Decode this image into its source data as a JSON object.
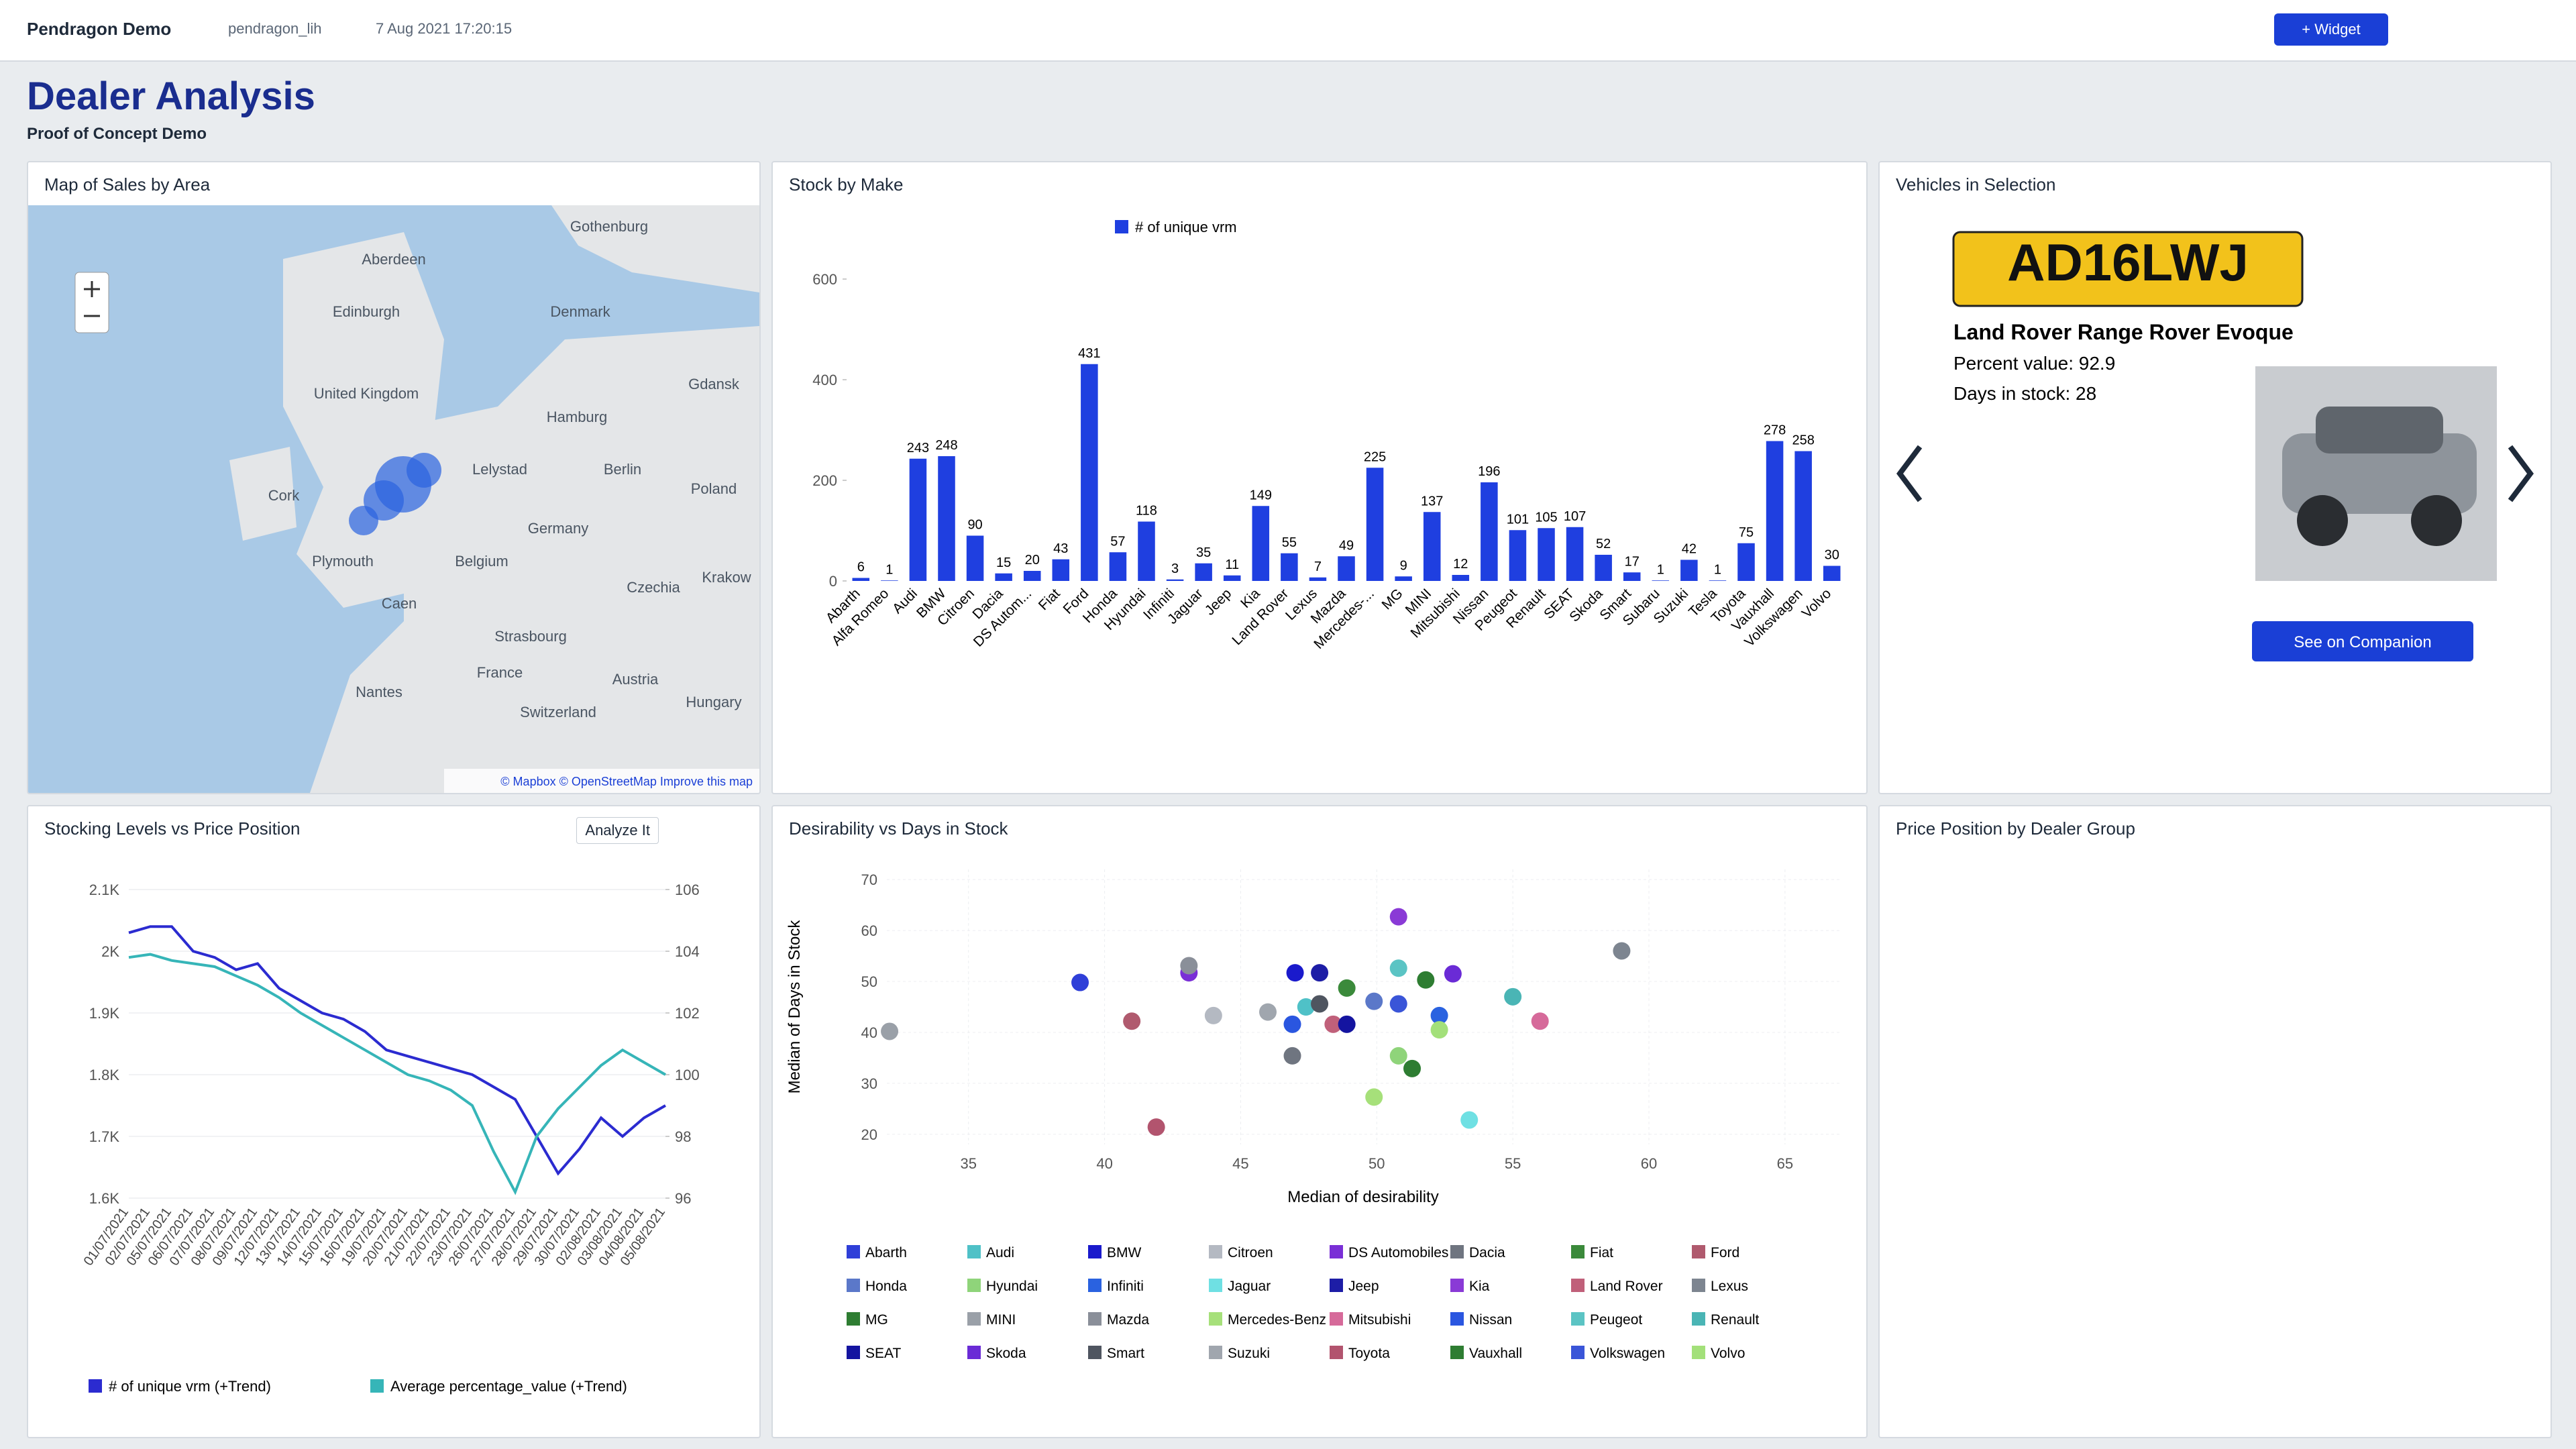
{
  "header": {
    "app": "Pendragon Demo",
    "user": "pendragon_lih",
    "timestamp": "7 Aug 2021 17:20:15",
    "widget_button": "+ Widget"
  },
  "dashboard": {
    "title": "Dealer Analysis",
    "subtitle": "Proof of Concept Demo"
  },
  "map_panel": {
    "title": "Map of Sales by Area",
    "labels": [
      "Aberdeen",
      "Gothenburg",
      "Edinburgh",
      "Denmark",
      "Gdansk",
      "Hamburg",
      "United Kingdom",
      "Lelystad",
      "Berlin",
      "Poland",
      "Cork",
      "Germany",
      "Plymouth",
      "Belgium",
      "Czechia",
      "Krakow",
      "Caen",
      "Strasbourg",
      "Nantes",
      "France",
      "Switzerland",
      "Austria",
      "Hungary"
    ],
    "attribution": "© Mapbox © OpenStreetMap Improve this map"
  },
  "stocking_panel": {
    "analyze_button": "Analyze It"
  },
  "vehicle_panel": {
    "title": "Vehicles in Selection",
    "plate": "AD16LWJ",
    "model": "Land Rover Range Rover Evoque",
    "percent_value": "Percent value: 92.9",
    "days_in_stock": "Days in stock: 28",
    "button": "See on Companion"
  },
  "price_panel": {
    "title": "Price Position by Dealer Group"
  },
  "chart_data": [
    {
      "type": "bar",
      "title": "Stock by Make",
      "categories": [
        "Abarth",
        "Alfa Romeo",
        "Audi",
        "BMW",
        "Citroen",
        "Dacia",
        "DS Autom...",
        "Fiat",
        "Ford",
        "Honda",
        "Hyundai",
        "Infiniti",
        "Jaguar",
        "Jeep",
        "Kia",
        "Land Rover",
        "Lexus",
        "Mazda",
        "Mercedes-...",
        "MG",
        "MINI",
        "Mitsubishi",
        "Nissan",
        "Peugeot",
        "Renault",
        "SEAT",
        "Skoda",
        "Smart",
        "Subaru",
        "Suzuki",
        "Tesla",
        "Toyota",
        "Vauxhall",
        "Volkswagen",
        "Volvo"
      ],
      "series": [
        {
          "name": "# of unique vrm",
          "color": "#1f3fe0",
          "values": [
            6,
            1,
            243,
            248,
            90,
            15,
            20,
            43,
            431,
            57,
            118,
            3,
            35,
            11,
            149,
            55,
            7,
            49,
            225,
            9,
            137,
            12,
            196,
            101,
            105,
            107,
            52,
            17,
            1,
            42,
            1,
            75,
            278,
            258,
            30
          ]
        }
      ],
      "ylim": [
        0,
        600
      ],
      "yticks": [
        0,
        200,
        400,
        600
      ],
      "grid": false,
      "legend": "top"
    },
    {
      "type": "line",
      "title": "Stocking Levels vs Price Position",
      "categories": [
        "01/07/2021",
        "02/07/2021",
        "05/07/2021",
        "06/07/2021",
        "07/07/2021",
        "08/07/2021",
        "09/07/2021",
        "12/07/2021",
        "13/07/2021",
        "14/07/2021",
        "15/07/2021",
        "16/07/2021",
        "19/07/2021",
        "20/07/2021",
        "21/07/2021",
        "22/07/2021",
        "23/07/2021",
        "26/07/2021",
        "27/07/2021",
        "28/07/2021",
        "29/07/2021",
        "30/07/2021",
        "02/08/2021",
        "03/08/2021",
        "04/08/2021",
        "05/08/2021"
      ],
      "series": [
        {
          "name": "# of unique vrm (+Trend)",
          "color": "#2b2bd0",
          "values": [
            2030,
            2040,
            2040,
            2000,
            1990,
            1970,
            1980,
            1940,
            1920,
            1900,
            1890,
            1870,
            1840,
            1830,
            1820,
            1810,
            1800,
            1780,
            1760,
            1700,
            1640,
            1680,
            1730,
            1700,
            1730,
            1750
          ]
        },
        {
          "name": "Average percentage_value (+Trend)",
          "color": "#36b5b8",
          "axis": "y2",
          "values": [
            103.8,
            103.9,
            103.7,
            103.6,
            103.5,
            103.2,
            102.9,
            102.5,
            102.0,
            101.6,
            101.2,
            100.8,
            100.4,
            100.0,
            99.8,
            99.5,
            99.0,
            97.5,
            96.2,
            98.0,
            98.9,
            99.6,
            100.3,
            100.8,
            100.4,
            100.0
          ]
        }
      ],
      "ylim": [
        1600,
        2100
      ],
      "yticks": [
        {
          "value": 1600,
          "label": "1.6K"
        },
        {
          "value": 1700,
          "label": "1.7K"
        },
        {
          "value": 1800,
          "label": "1.8K"
        },
        {
          "value": 1900,
          "label": "1.9K"
        },
        {
          "value": 2000,
          "label": "2K"
        },
        {
          "value": 2100,
          "label": "2.1K"
        }
      ],
      "y2lim": [
        96,
        106
      ],
      "y2ticks": [
        96,
        98,
        100,
        102,
        104,
        106
      ],
      "grid": true,
      "legend": "bottom"
    },
    {
      "type": "scatter",
      "title": "Desirability vs Days in Stock",
      "x_label": "Median of desirability",
      "y_label": "Median of Days in Stock",
      "series": [
        {
          "name": "Abarth",
          "color": "#2f3fd8",
          "x": [
            39.1
          ],
          "values": [
            49.8
          ]
        },
        {
          "name": "Audi",
          "color": "#4fc1c7",
          "x": [
            47.4
          ],
          "values": [
            45.0
          ]
        },
        {
          "name": "BMW",
          "color": "#1a1acc",
          "x": [
            47.0
          ],
          "values": [
            51.7
          ]
        },
        {
          "name": "Citroen",
          "color": "#b4b9c2",
          "x": [
            44.0
          ],
          "values": [
            43.3
          ]
        },
        {
          "name": "DS Automobiles",
          "color": "#7a2fd6",
          "x": [
            43.1
          ],
          "values": [
            51.7
          ]
        },
        {
          "name": "Dacia",
          "color": "#6f7580",
          "x": [
            46.9
          ],
          "values": [
            35.4
          ]
        },
        {
          "name": "Fiat",
          "color": "#3b8a3b",
          "x": [
            48.9
          ],
          "values": [
            48.7
          ]
        },
        {
          "name": "Ford",
          "color": "#b05a6e",
          "x": [
            41.0
          ],
          "values": [
            42.2
          ]
        },
        {
          "name": "Honda",
          "color": "#5b78c9",
          "x": [
            49.9
          ],
          "values": [
            46.1
          ]
        },
        {
          "name": "Hyundai",
          "color": "#8fd47a",
          "x": [
            50.8
          ],
          "values": [
            35.4
          ]
        },
        {
          "name": "Infiniti",
          "color": "#2a62e0",
          "x": [
            52.3
          ],
          "values": [
            43.3
          ]
        },
        {
          "name": "Jaguar",
          "color": "#6fe0e3",
          "x": [
            53.4
          ],
          "values": [
            22.8
          ]
        },
        {
          "name": "Jeep",
          "color": "#1d1da6",
          "x": [
            47.9
          ],
          "values": [
            51.7
          ]
        },
        {
          "name": "Kia",
          "color": "#8a3ad6",
          "x": [
            50.8
          ],
          "values": [
            62.7
          ]
        },
        {
          "name": "Land Rover",
          "color": "#c0607a",
          "x": [
            48.4
          ],
          "values": [
            41.6
          ]
        },
        {
          "name": "Lexus",
          "color": "#7d8590",
          "x": [
            59.0
          ],
          "values": [
            56.0
          ]
        },
        {
          "name": "MG",
          "color": "#2e7d32",
          "x": [
            51.8
          ],
          "values": [
            50.3
          ]
        },
        {
          "name": "MINI",
          "color": "#9aa0a8",
          "x": [
            32.1
          ],
          "values": [
            40.2
          ]
        },
        {
          "name": "Mazda",
          "color": "#8a8f99",
          "x": [
            43.1
          ],
          "values": [
            53.1
          ]
        },
        {
          "name": "Mercedes-Benz",
          "color": "#a6e07a",
          "x": [
            49.9
          ],
          "values": [
            27.3
          ]
        },
        {
          "name": "Mitsubishi",
          "color": "#d66a9a",
          "x": [
            56.0
          ],
          "values": [
            42.2
          ]
        },
        {
          "name": "Nissan",
          "color": "#2a56e0",
          "x": [
            46.9
          ],
          "values": [
            41.6
          ]
        },
        {
          "name": "Peugeot",
          "color": "#5bc4c4",
          "x": [
            50.8
          ],
          "values": [
            52.6
          ]
        },
        {
          "name": "Renault",
          "color": "#4ab5b5",
          "x": [
            55.0
          ],
          "values": [
            47.0
          ]
        },
        {
          "name": "SEAT",
          "color": "#1414a0",
          "x": [
            48.9
          ],
          "values": [
            41.6
          ]
        },
        {
          "name": "Skoda",
          "color": "#6a2bd6",
          "x": [
            52.8
          ],
          "values": [
            51.5
          ]
        },
        {
          "name": "Smart",
          "color": "#4f5560",
          "x": [
            47.9
          ],
          "values": [
            45.6
          ]
        },
        {
          "name": "Suzuki",
          "color": "#a0a6ae",
          "x": [
            46.0
          ],
          "values": [
            44.0
          ]
        },
        {
          "name": "Toyota",
          "color": "#b2546e",
          "x": [
            41.9
          ],
          "values": [
            21.4
          ]
        },
        {
          "name": "Vauxhall",
          "color": "#2e7d32",
          "x": [
            51.3
          ],
          "values": [
            32.9
          ]
        },
        {
          "name": "Volkswagen",
          "color": "#3a55d8",
          "x": [
            50.8
          ],
          "values": [
            45.6
          ]
        },
        {
          "name": "Volvo",
          "color": "#a3e07a",
          "x": [
            52.3
          ],
          "values": [
            40.5
          ]
        }
      ],
      "xlim": [
        32,
        67
      ],
      "xticks": [
        35,
        40,
        45,
        50,
        55,
        60,
        65
      ],
      "ylim": [
        18,
        72
      ],
      "yticks": [
        20,
        30,
        40,
        50,
        60,
        70
      ],
      "grid": true,
      "legend": "bottom"
    }
  ]
}
